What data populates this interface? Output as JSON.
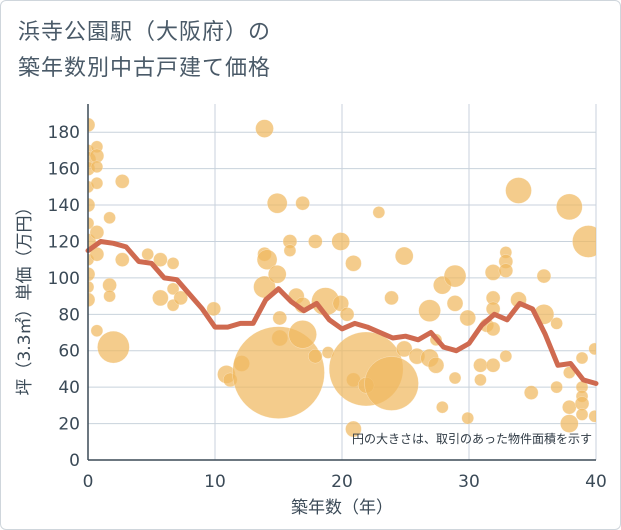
{
  "title_line1": "浜寺公園駅（大阪府）の",
  "title_line2": "築年数別中古戸建て価格",
  "note": "円の大きさは、取引のあった物件面積を示す",
  "colors": {
    "bubble": "#f0b860",
    "line": "#cf6a50",
    "grid": "#c8d2dc",
    "axis": "#3b4a57",
    "text": "#4a5a68"
  },
  "chart_data": {
    "type": "scatter",
    "xlabel": "築年数（年）",
    "ylabel": "坪（3.3㎡）単価（万円）",
    "xlim": [
      0,
      40
    ],
    "ylim": [
      0,
      190
    ],
    "xticks": [
      0,
      10,
      20,
      30,
      40
    ],
    "yticks": [
      0,
      20,
      40,
      60,
      80,
      100,
      120,
      140,
      160,
      180
    ],
    "grid": true,
    "bubbles": [
      {
        "x": 0,
        "y": 184,
        "s": 7
      },
      {
        "x": 0,
        "y": 170,
        "s": 6
      },
      {
        "x": 0,
        "y": 165,
        "s": 8
      },
      {
        "x": 0,
        "y": 160,
        "s": 7
      },
      {
        "x": 0,
        "y": 150,
        "s": 6
      },
      {
        "x": 0,
        "y": 140,
        "s": 7
      },
      {
        "x": 0,
        "y": 130,
        "s": 6
      },
      {
        "x": 0,
        "y": 120,
        "s": 8
      },
      {
        "x": 0,
        "y": 110,
        "s": 6
      },
      {
        "x": 0,
        "y": 102,
        "s": 7
      },
      {
        "x": 0,
        "y": 95,
        "s": 6
      },
      {
        "x": 0,
        "y": 88,
        "s": 7
      },
      {
        "x": 0.7,
        "y": 172,
        "s": 6
      },
      {
        "x": 0.7,
        "y": 167,
        "s": 7
      },
      {
        "x": 0.7,
        "y": 161,
        "s": 6
      },
      {
        "x": 0.7,
        "y": 152,
        "s": 6
      },
      {
        "x": 0.7,
        "y": 125,
        "s": 7
      },
      {
        "x": 0.7,
        "y": 113,
        "s": 7
      },
      {
        "x": 0.7,
        "y": 71,
        "s": 6
      },
      {
        "x": 1.7,
        "y": 133,
        "s": 6
      },
      {
        "x": 1.7,
        "y": 96,
        "s": 7
      },
      {
        "x": 1.7,
        "y": 90,
        "s": 6
      },
      {
        "x": 2,
        "y": 62,
        "s": 16
      },
      {
        "x": 2.7,
        "y": 153,
        "s": 7
      },
      {
        "x": 2.7,
        "y": 110,
        "s": 7
      },
      {
        "x": 4.7,
        "y": 113,
        "s": 6
      },
      {
        "x": 5.7,
        "y": 110,
        "s": 7
      },
      {
        "x": 5.7,
        "y": 89,
        "s": 8
      },
      {
        "x": 6.7,
        "y": 108,
        "s": 6
      },
      {
        "x": 6.7,
        "y": 94,
        "s": 6
      },
      {
        "x": 6.7,
        "y": 85,
        "s": 6
      },
      {
        "x": 7.3,
        "y": 89,
        "s": 7
      },
      {
        "x": 9.9,
        "y": 83,
        "s": 7
      },
      {
        "x": 10.9,
        "y": 47,
        "s": 9
      },
      {
        "x": 11.2,
        "y": 44,
        "s": 7
      },
      {
        "x": 12.1,
        "y": 53,
        "s": 8
      },
      {
        "x": 13.9,
        "y": 182,
        "s": 9
      },
      {
        "x": 13.9,
        "y": 113,
        "s": 7
      },
      {
        "x": 13.9,
        "y": 95,
        "s": 11
      },
      {
        "x": 14.1,
        "y": 110,
        "s": 10
      },
      {
        "x": 14.9,
        "y": 141,
        "s": 10
      },
      {
        "x": 14.9,
        "y": 102,
        "s": 9
      },
      {
        "x": 15.1,
        "y": 78,
        "s": 7
      },
      {
        "x": 15.1,
        "y": 67,
        "s": 8
      },
      {
        "x": 15.9,
        "y": 120,
        "s": 7
      },
      {
        "x": 15.9,
        "y": 115,
        "s": 6
      },
      {
        "x": 15,
        "y": 48,
        "s": 46
      },
      {
        "x": 16.4,
        "y": 90,
        "s": 8
      },
      {
        "x": 16.9,
        "y": 141,
        "s": 7
      },
      {
        "x": 16.9,
        "y": 85,
        "s": 8
      },
      {
        "x": 16.9,
        "y": 69,
        "s": 14
      },
      {
        "x": 17.9,
        "y": 120,
        "s": 7
      },
      {
        "x": 17.9,
        "y": 57,
        "s": 7
      },
      {
        "x": 18.7,
        "y": 87,
        "s": 14
      },
      {
        "x": 18.9,
        "y": 59,
        "s": 6
      },
      {
        "x": 19.9,
        "y": 120,
        "s": 9
      },
      {
        "x": 19.9,
        "y": 86,
        "s": 8
      },
      {
        "x": 20.4,
        "y": 80,
        "s": 7
      },
      {
        "x": 20.9,
        "y": 108,
        "s": 8
      },
      {
        "x": 20.9,
        "y": 44,
        "s": 7
      },
      {
        "x": 20.9,
        "y": 17,
        "s": 8
      },
      {
        "x": 21.9,
        "y": 50,
        "s": 37
      },
      {
        "x": 21.9,
        "y": 41,
        "s": 8
      },
      {
        "x": 22.9,
        "y": 136,
        "s": 6
      },
      {
        "x": 23.9,
        "y": 89,
        "s": 7
      },
      {
        "x": 23.9,
        "y": 42,
        "s": 27
      },
      {
        "x": 24.9,
        "y": 112,
        "s": 9
      },
      {
        "x": 24.9,
        "y": 61,
        "s": 8
      },
      {
        "x": 25.9,
        "y": 57,
        "s": 8
      },
      {
        "x": 26.9,
        "y": 82,
        "s": 11
      },
      {
        "x": 26.9,
        "y": 56,
        "s": 9
      },
      {
        "x": 27.4,
        "y": 66,
        "s": 6
      },
      {
        "x": 27.4,
        "y": 52,
        "s": 8
      },
      {
        "x": 27.9,
        "y": 96,
        "s": 9
      },
      {
        "x": 27.9,
        "y": 29,
        "s": 6
      },
      {
        "x": 28.9,
        "y": 101,
        "s": 11
      },
      {
        "x": 28.9,
        "y": 86,
        "s": 8
      },
      {
        "x": 28.9,
        "y": 45,
        "s": 6
      },
      {
        "x": 29.9,
        "y": 78,
        "s": 8
      },
      {
        "x": 29.9,
        "y": 23,
        "s": 6
      },
      {
        "x": 30.9,
        "y": 52,
        "s": 7
      },
      {
        "x": 30.9,
        "y": 44,
        "s": 6
      },
      {
        "x": 31.4,
        "y": 74,
        "s": 7
      },
      {
        "x": 31.9,
        "y": 103,
        "s": 8
      },
      {
        "x": 31.9,
        "y": 89,
        "s": 7
      },
      {
        "x": 31.9,
        "y": 83,
        "s": 7
      },
      {
        "x": 31.9,
        "y": 72,
        "s": 7
      },
      {
        "x": 31.9,
        "y": 52,
        "s": 7
      },
      {
        "x": 32.9,
        "y": 114,
        "s": 6
      },
      {
        "x": 32.9,
        "y": 109,
        "s": 7
      },
      {
        "x": 32.9,
        "y": 104,
        "s": 7
      },
      {
        "x": 32.9,
        "y": 57,
        "s": 6
      },
      {
        "x": 33.9,
        "y": 148,
        "s": 13
      },
      {
        "x": 33.9,
        "y": 88,
        "s": 8
      },
      {
        "x": 34.9,
        "y": 37,
        "s": 7
      },
      {
        "x": 35.9,
        "y": 101,
        "s": 7
      },
      {
        "x": 35.9,
        "y": 80,
        "s": 10
      },
      {
        "x": 36.9,
        "y": 75,
        "s": 6
      },
      {
        "x": 36.9,
        "y": 40,
        "s": 6
      },
      {
        "x": 37.9,
        "y": 48,
        "s": 6
      },
      {
        "x": 37.9,
        "y": 29,
        "s": 7
      },
      {
        "x": 37.9,
        "y": 20,
        "s": 9
      },
      {
        "x": 38.9,
        "y": 56,
        "s": 6
      },
      {
        "x": 38.9,
        "y": 40,
        "s": 6
      },
      {
        "x": 38.9,
        "y": 35,
        "s": 6
      },
      {
        "x": 38.9,
        "y": 31,
        "s": 7
      },
      {
        "x": 38.9,
        "y": 25,
        "s": 6
      },
      {
        "x": 37.9,
        "y": 139,
        "s": 13
      },
      {
        "x": 39.4,
        "y": 120,
        "s": 16
      },
      {
        "x": 39.9,
        "y": 61,
        "s": 6
      },
      {
        "x": 39.9,
        "y": 24,
        "s": 6
      }
    ],
    "series": [
      {
        "x": [
          0,
          1,
          2,
          3,
          4,
          5,
          6,
          7,
          8,
          9,
          10,
          11,
          12,
          13,
          14,
          15,
          16,
          17,
          18,
          19,
          20,
          21,
          22,
          23,
          24,
          25,
          26,
          27,
          28,
          29,
          30,
          31,
          32,
          33,
          34,
          35,
          36,
          37,
          38,
          39,
          40
        ],
        "y": [
          115,
          120,
          119,
          117,
          109,
          108,
          100,
          99,
          91,
          83,
          73,
          73,
          75,
          75,
          88,
          94,
          87,
          82,
          86,
          77,
          72,
          75,
          73,
          70,
          67,
          68,
          66,
          70,
          62,
          60,
          64,
          74,
          80,
          77,
          86,
          83,
          69,
          52,
          53,
          44,
          42
        ]
      }
    ]
  }
}
